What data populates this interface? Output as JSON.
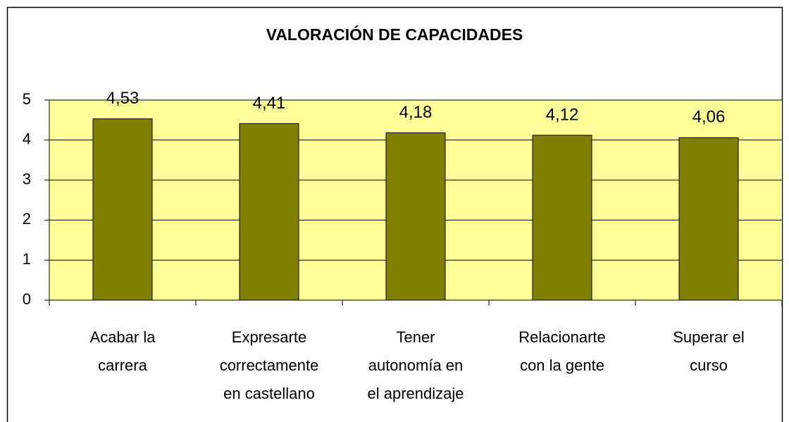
{
  "chart_data": {
    "type": "bar",
    "title": "VALORACIÓN DE CAPACIDADES",
    "categories": [
      "Acabar la\ncarrera",
      "Expresarte\ncorrectamente\nen castellano",
      "Tener\nautonomía en\nel aprendizaje",
      "Relacionarte\ncon la gente",
      "Superar el\ncurso"
    ],
    "values": [
      4.53,
      4.41,
      4.18,
      4.12,
      4.06
    ],
    "value_labels": [
      "4,53",
      "4,41",
      "4,18",
      "4,12",
      "4,06"
    ],
    "color": "#808000",
    "plot_background": "#ffff99",
    "ylim": [
      0,
      5
    ],
    "yticks": [
      0,
      1,
      2,
      3,
      4,
      5
    ],
    "grid": true
  }
}
